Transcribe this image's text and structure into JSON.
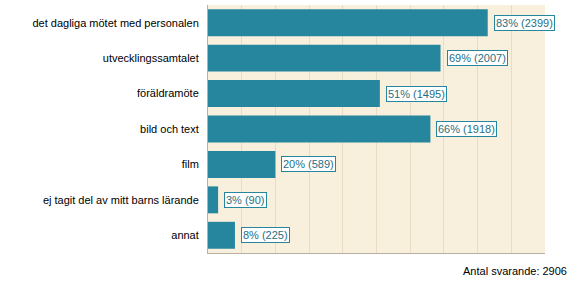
{
  "chart_data": {
    "type": "bar",
    "orientation": "horizontal",
    "categories": [
      "det dagliga mötet med personalen",
      "utvecklingssamtalet",
      "föräldramöte",
      "bild och text",
      "film",
      "ej tagit del av mitt barns lärande",
      "annat"
    ],
    "values": [
      83,
      69,
      51,
      66,
      20,
      3,
      8
    ],
    "value_labels": [
      "83% (2399)",
      "69% (2007)",
      "51% (1495)",
      "66% (1918)",
      "20% (589)",
      "3% (90)",
      "8% (225)"
    ],
    "data_labels": true,
    "color": "#26869e",
    "xlim": [
      0,
      100
    ],
    "xticks": [
      0,
      10,
      20,
      30,
      40,
      50,
      60,
      70,
      80,
      90,
      100
    ],
    "grid": true,
    "tick_labels": "y",
    "annotations": [
      "Antal svarande: 2906"
    ]
  }
}
